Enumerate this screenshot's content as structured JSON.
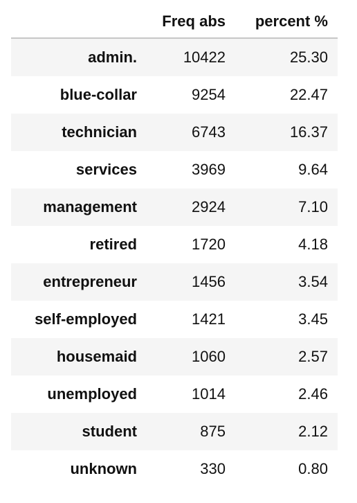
{
  "table": {
    "columns": [
      "",
      "Freq abs",
      "percent %"
    ],
    "rows": [
      {
        "label": "admin.",
        "freq": "10422",
        "percent": "25.30"
      },
      {
        "label": "blue-collar",
        "freq": "9254",
        "percent": "22.47"
      },
      {
        "label": "technician",
        "freq": "6743",
        "percent": "16.37"
      },
      {
        "label": "services",
        "freq": "3969",
        "percent": "9.64"
      },
      {
        "label": "management",
        "freq": "2924",
        "percent": "7.10"
      },
      {
        "label": "retired",
        "freq": "1720",
        "percent": "4.18"
      },
      {
        "label": "entrepreneur",
        "freq": "1456",
        "percent": "3.54"
      },
      {
        "label": "self-employed",
        "freq": "1421",
        "percent": "3.45"
      },
      {
        "label": "housemaid",
        "freq": "1060",
        "percent": "2.57"
      },
      {
        "label": "unemployed",
        "freq": "1014",
        "percent": "2.46"
      },
      {
        "label": "student",
        "freq": "875",
        "percent": "2.12"
      },
      {
        "label": "unknown",
        "freq": "330",
        "percent": "0.80"
      }
    ]
  }
}
